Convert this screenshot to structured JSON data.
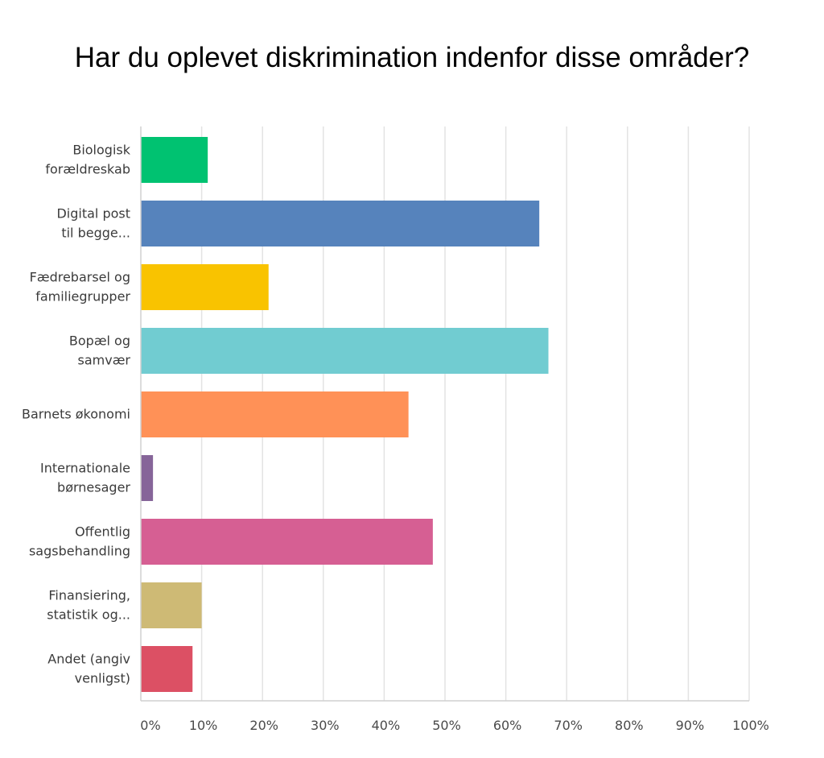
{
  "chart_data": {
    "type": "bar",
    "orientation": "horizontal",
    "title": "Har du oplevet diskrimination indenfor disse områder?",
    "categories": [
      [
        "Biologisk",
        "forældreskab"
      ],
      [
        "Digital post",
        "til begge..."
      ],
      [
        "Fædrebarsel og",
        "familiegrupper"
      ],
      [
        "Bopæl og",
        "samvær"
      ],
      [
        "Barnets økonomi"
      ],
      [
        "Internationale",
        "børnesager"
      ],
      [
        "Offentlig",
        "sagsbehandling"
      ],
      [
        "Finansiering,",
        "statistik og..."
      ],
      [
        "Andet (angiv",
        "venligst)"
      ]
    ],
    "values": [
      11,
      65.5,
      21,
      67,
      44,
      2,
      48,
      10,
      8.5
    ],
    "colors": [
      "#00c271",
      "#5683bc",
      "#f9c300",
      "#71ccd1",
      "#ff9157",
      "#866599",
      "#d65f93",
      "#ceba75",
      "#dc5064"
    ],
    "xlim": [
      0,
      100
    ],
    "xticks": [
      0,
      10,
      20,
      30,
      40,
      50,
      60,
      70,
      80,
      90,
      100
    ],
    "xtick_labels": [
      "0%",
      "10%",
      "20%",
      "30%",
      "40%",
      "50%",
      "60%",
      "70%",
      "80%",
      "90%",
      "100%"
    ],
    "grid": true,
    "xlabel": "",
    "ylabel": ""
  }
}
